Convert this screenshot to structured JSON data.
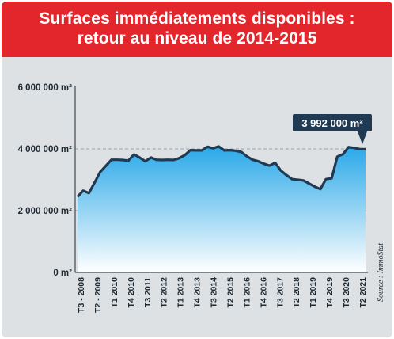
{
  "header": {
    "title_line1": "Surfaces immédiatements disponibles :",
    "title_line2": "retour au niveau de 2014-2015"
  },
  "colors": {
    "header_bg": "#e2262c",
    "panel_bg": "#dde1e4",
    "area_top": "#2aa8e8",
    "area_bottom": "#ffffff",
    "line": "#1f3a52",
    "callout_bg": "#1f3a52"
  },
  "chart_data": {
    "type": "area",
    "title": "Surfaces immédiatements disponibles : retour au niveau de 2014-2015",
    "y_unit": "m²",
    "ylim": [
      0,
      6000000
    ],
    "y_ticks": [
      {
        "value": 0,
        "label": "0 m²"
      },
      {
        "value": 2000000,
        "label": "2 000 000 m²"
      },
      {
        "value": 4000000,
        "label": "4 000 000 m²"
      },
      {
        "value": 6000000,
        "label": "6 000 000 m²"
      }
    ],
    "grid": "dashed horizontal at 2 000 000 and 4 000 000",
    "x_tick_labels": [
      "T3 - 2008",
      "T2 - 2009",
      "T1 2010",
      "T4 2010",
      "T3 2011",
      "T2 2012",
      "T1 2013",
      "T4 2013",
      "T3 2014",
      "T2 2015",
      "T1 2016",
      "T4 2016",
      "T3 2017",
      "T2 2018",
      "T1 2019",
      "T4 2019",
      "T3 2020",
      "T2 2021"
    ],
    "series": [
      {
        "x": [
          "T3 2008",
          "T4 2008",
          "T1 2009",
          "T2 2009",
          "T3 2009",
          "T4 2009",
          "T1 2010",
          "T2 2010",
          "T3 2010",
          "T4 2010",
          "T1 2011",
          "T2 2011",
          "T3 2011",
          "T4 2011",
          "T1 2012",
          "T2 2012",
          "T3 2012",
          "T4 2012",
          "T1 2013",
          "T2 2013",
          "T3 2013",
          "T4 2013",
          "T1 2014",
          "T2 2014",
          "T3 2014",
          "T4 2014",
          "T1 2015",
          "T2 2015",
          "T3 2015",
          "T4 2015",
          "T1 2016",
          "T2 2016",
          "T3 2016",
          "T4 2016",
          "T1 2017",
          "T2 2017",
          "T3 2017",
          "T4 2017",
          "T1 2018",
          "T2 2018",
          "T3 2018",
          "T4 2018",
          "T1 2019",
          "T2 2019",
          "T3 2019",
          "T4 2019",
          "T1 2020",
          "T2 2020",
          "T3 2020",
          "T4 2020",
          "T1 2021",
          "T2 2021"
        ],
        "values": [
          2450000,
          2650000,
          2570000,
          2900000,
          3250000,
          3450000,
          3650000,
          3650000,
          3640000,
          3620000,
          3820000,
          3720000,
          3600000,
          3720000,
          3650000,
          3640000,
          3650000,
          3640000,
          3700000,
          3800000,
          3960000,
          3950000,
          3950000,
          4070000,
          4020000,
          4080000,
          3950000,
          3960000,
          3940000,
          3900000,
          3760000,
          3650000,
          3600000,
          3520000,
          3460000,
          3550000,
          3300000,
          3150000,
          3020000,
          3000000,
          2980000,
          2880000,
          2780000,
          2700000,
          3020000,
          3050000,
          3750000,
          3830000,
          4060000,
          4030000,
          3992000,
          3992000
        ]
      }
    ],
    "annotation": {
      "label": "3 992 000 m²",
      "point": "T2 2021",
      "value": 3992000
    },
    "source": "Source : ImmoStat"
  }
}
